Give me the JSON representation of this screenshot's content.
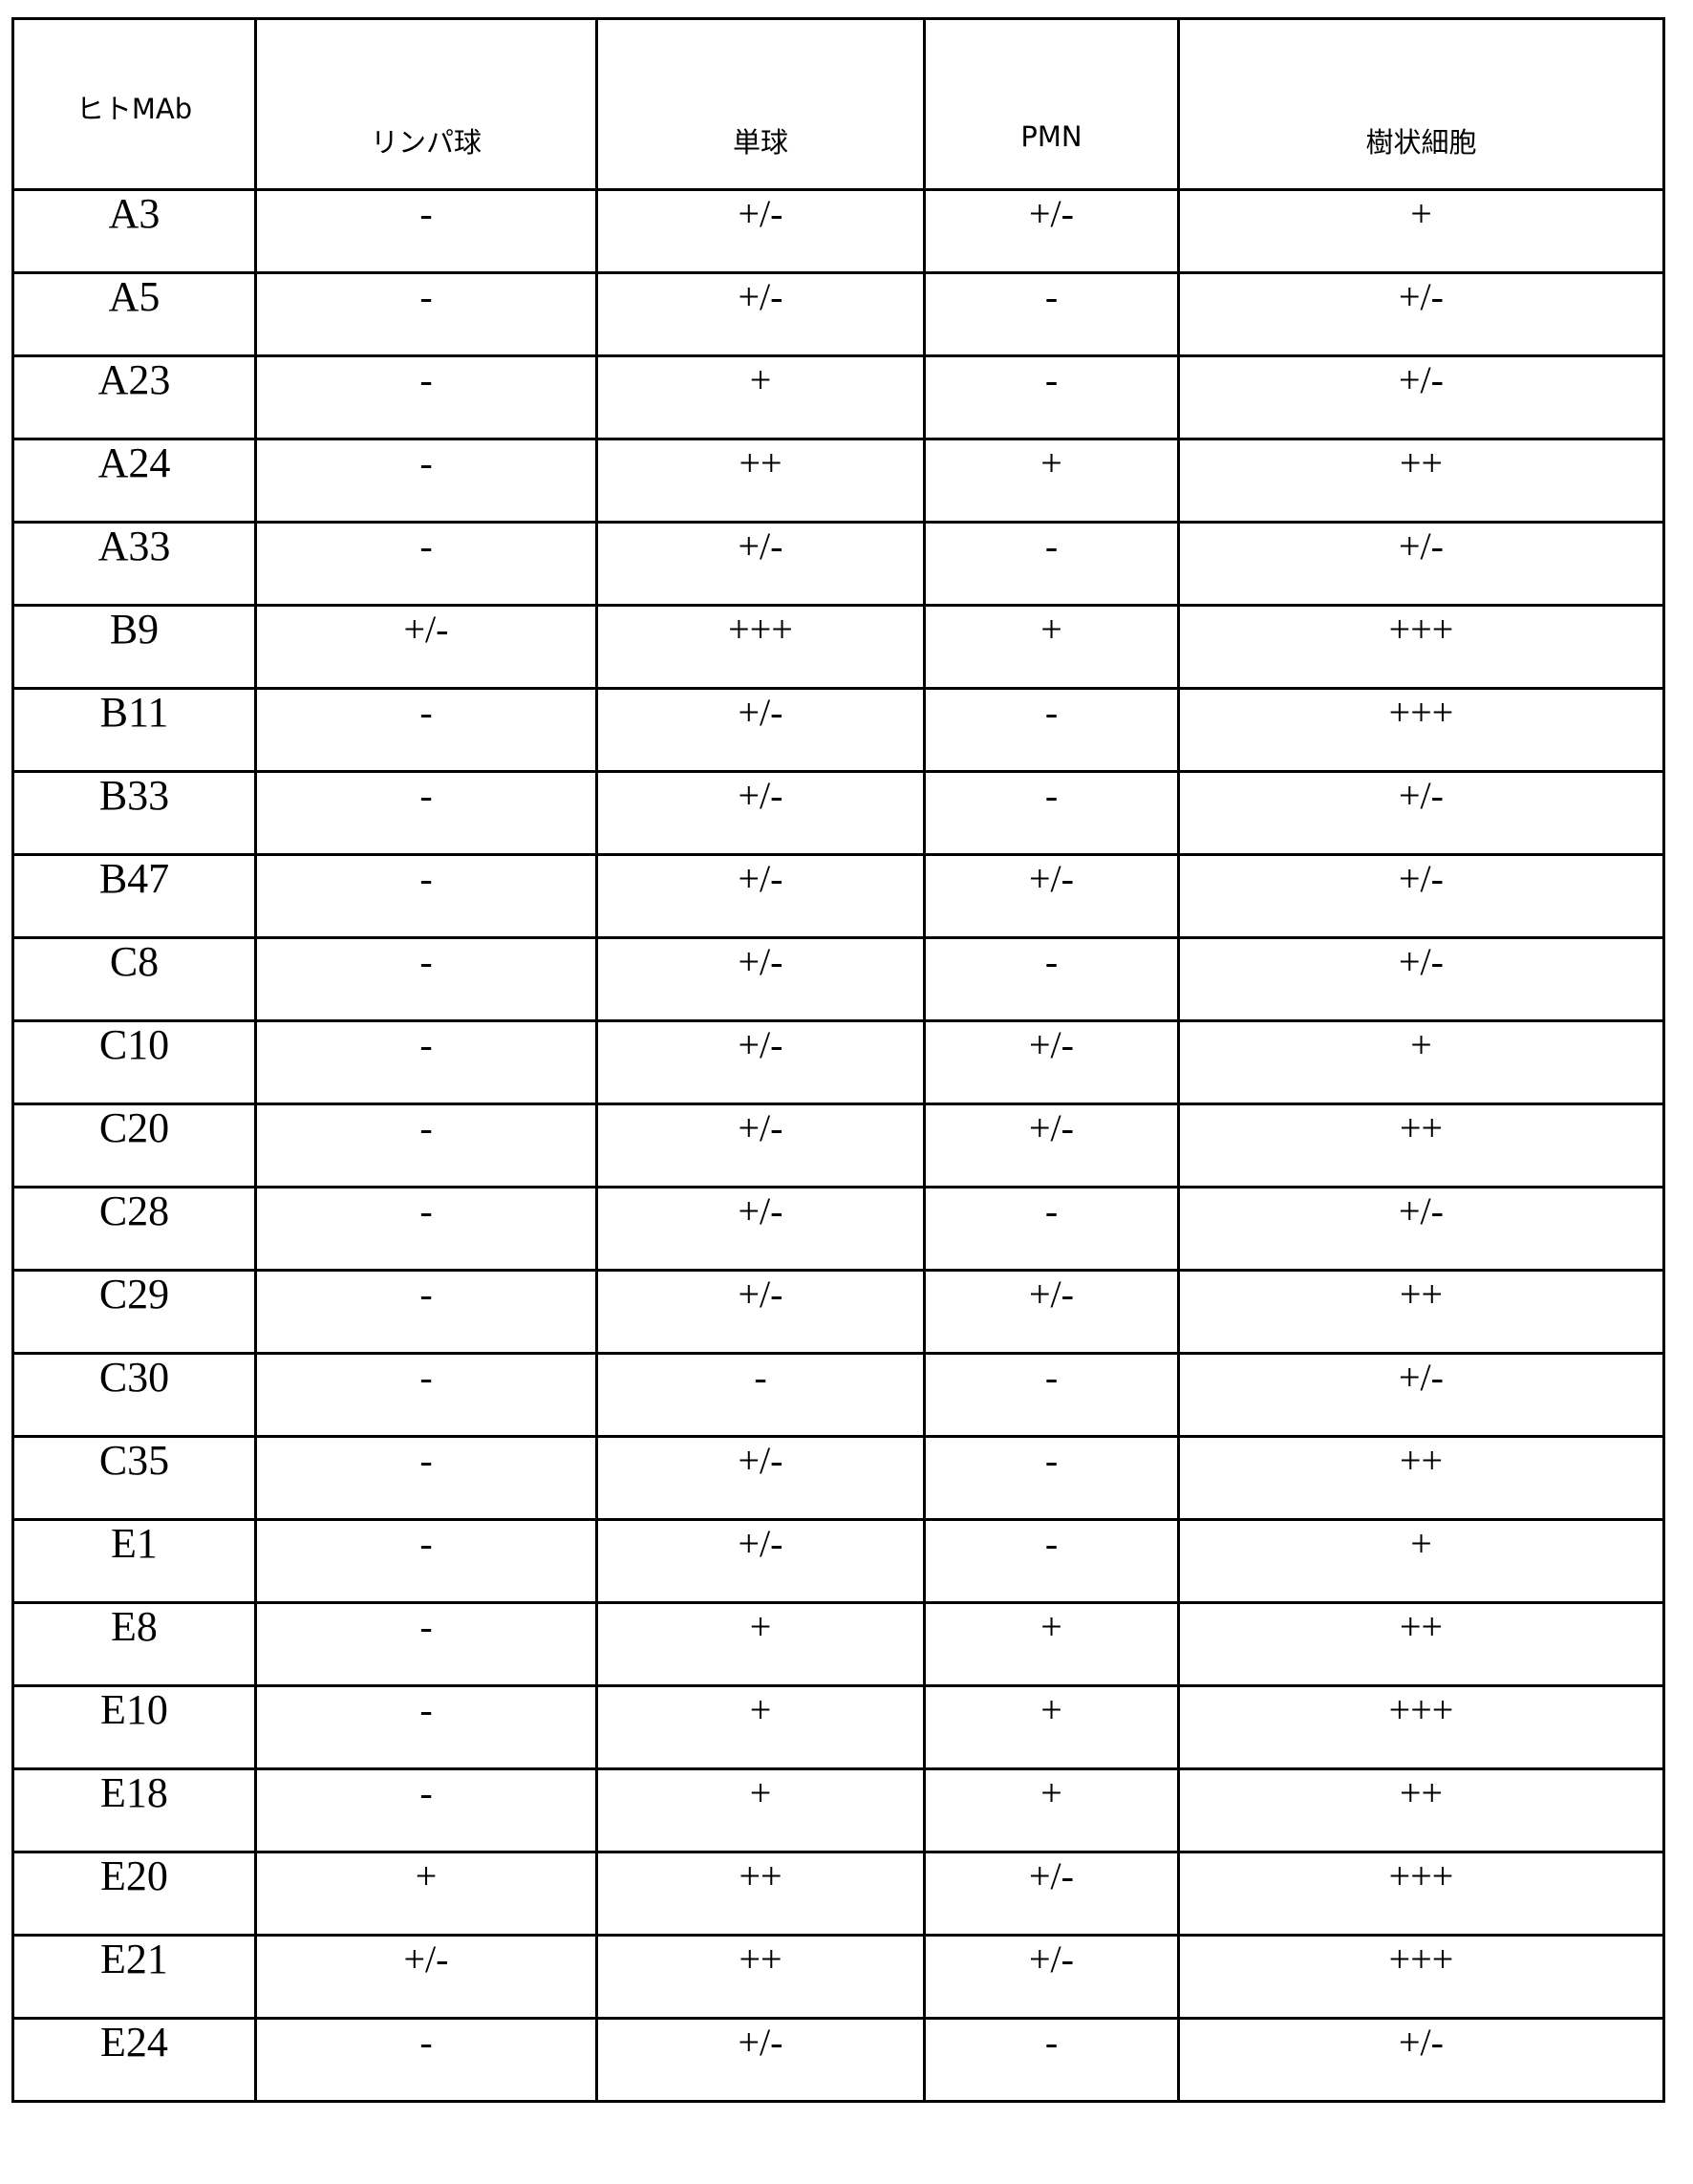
{
  "table": {
    "headers": [
      "ヒトMAb",
      "リンパ球",
      "単球",
      "PMN",
      "樹状細胞"
    ],
    "rows": [
      [
        "A3",
        "-",
        "+/-",
        "+/-",
        "+"
      ],
      [
        "A5",
        "-",
        "+/-",
        "-",
        "+/-"
      ],
      [
        "A23",
        "-",
        "+",
        "-",
        "+/-"
      ],
      [
        "A24",
        "-",
        "++",
        "+",
        "++"
      ],
      [
        "A33",
        "-",
        "+/-",
        "-",
        "+/-"
      ],
      [
        "B9",
        "+/-",
        "+++",
        "+",
        "+++"
      ],
      [
        "B11",
        "-",
        "+/-",
        "-",
        "+++"
      ],
      [
        "B33",
        "-",
        "+/-",
        "-",
        "+/-"
      ],
      [
        "B47",
        "-",
        "+/-",
        "+/-",
        "+/-"
      ],
      [
        "C8",
        "-",
        "+/-",
        "-",
        "+/-"
      ],
      [
        "C10",
        "-",
        "+/-",
        "+/-",
        "+"
      ],
      [
        "C20",
        "-",
        "+/-",
        "+/-",
        "++"
      ],
      [
        "C28",
        "-",
        "+/-",
        "-",
        "+/-"
      ],
      [
        "C29",
        "-",
        "+/-",
        "+/-",
        "++"
      ],
      [
        "C30",
        "-",
        "-",
        "-",
        "+/-"
      ],
      [
        "C35",
        "-",
        "+/-",
        "-",
        "++"
      ],
      [
        "E1",
        "-",
        "+/-",
        "-",
        "+"
      ],
      [
        "E8",
        "-",
        "+",
        "+",
        "++"
      ],
      [
        "E10",
        "-",
        "+",
        "+",
        "+++"
      ],
      [
        "E18",
        "-",
        "+",
        "+",
        "++"
      ],
      [
        "E20",
        "+",
        "++",
        "+/-",
        "+++"
      ],
      [
        "E21",
        "+/-",
        "++",
        "+/-",
        "+++"
      ],
      [
        "E24",
        "-",
        "+/-",
        "-",
        "+/-"
      ]
    ]
  }
}
